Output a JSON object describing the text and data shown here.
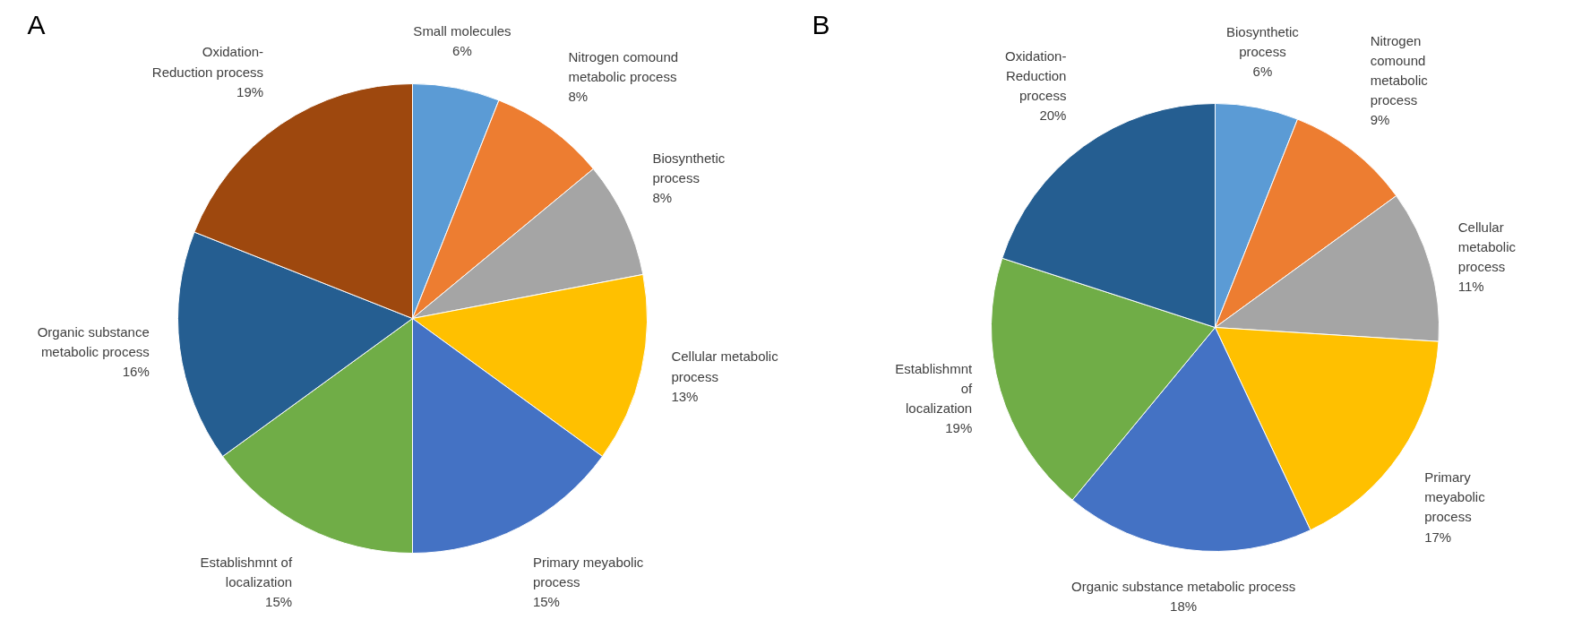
{
  "chart_data": [
    {
      "type": "pie",
      "title": "A",
      "categories": [
        "Small molecules",
        "Nitrogen comound\nmetabolic process",
        "Biosynthetic\nprocess",
        "Cellular metabolic\nprocess",
        "Primary meyabolic\nprocess",
        "Establishmnt of\nlocalization",
        "Organic substance\nmetabolic process",
        "Oxidation-\nReduction process"
      ],
      "values": [
        6,
        8,
        8,
        13,
        15,
        15,
        16,
        19
      ],
      "value_labels": [
        "6%",
        "8%",
        "8%",
        "13%",
        "15%",
        "15%",
        "16%",
        "19%"
      ],
      "colors": [
        "#5b9bd5",
        "#ed7d31",
        "#a5a5a5",
        "#ffc000",
        "#4472c4",
        "#70ad47",
        "#255e91",
        "#9e480e"
      ]
    },
    {
      "type": "pie",
      "title": "B",
      "categories": [
        "Biosynthetic\nprocess",
        "Nitrogen\ncomound\nmetabolic\nprocess",
        "Cellular\nmetabolic\nprocess",
        "Primary\nmeyabolic\nprocess",
        "Organic substance metabolic process",
        "Establishmnt\nof\nlocalization",
        "Oxidation-\nReduction\nprocess"
      ],
      "values": [
        6,
        9,
        11,
        17,
        18,
        19,
        20
      ],
      "value_labels": [
        "6%",
        "9%",
        "11%",
        "17%",
        "18%",
        "19%",
        "20%"
      ],
      "colors": [
        "#5b9bd5",
        "#ed7d31",
        "#a5a5a5",
        "#ffc000",
        "#4472c4",
        "#70ad47",
        "#255e91"
      ]
    }
  ]
}
